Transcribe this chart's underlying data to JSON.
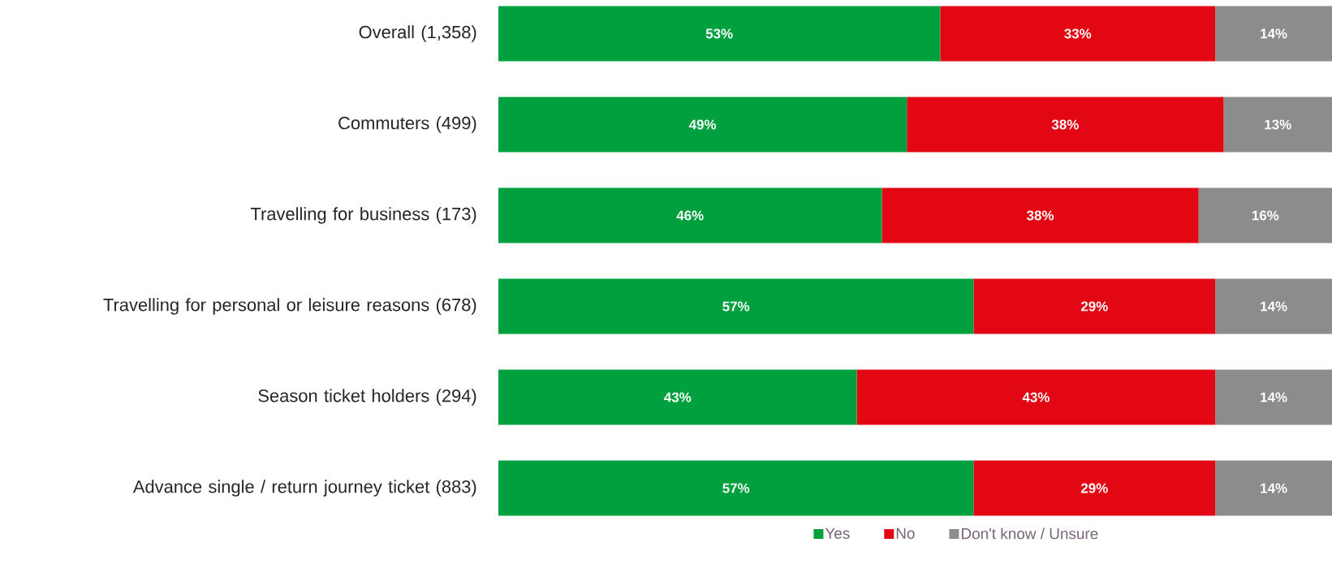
{
  "chart_data": {
    "type": "bar",
    "orientation": "horizontal",
    "stacked": true,
    "categories": [
      "Overall (1,358)",
      "Commuters (499)",
      "Travelling for business (173)",
      "Travelling for personal or leisure reasons (678)",
      "Season ticket holders (294)",
      "Advance single / return journey ticket (883)"
    ],
    "series": [
      {
        "name": "Yes",
        "color": "#00a03e",
        "values": [
          53,
          49,
          46,
          57,
          43,
          57
        ],
        "value_labels": [
          "53%",
          "49%",
          "46%",
          "57%",
          "43%",
          "57%"
        ]
      },
      {
        "name": "No",
        "color": "#e30613",
        "values": [
          33,
          38,
          38,
          29,
          43,
          29
        ],
        "value_labels": [
          "33%",
          "38%",
          "38%",
          "29%",
          "43%",
          "29%"
        ]
      },
      {
        "name": "Don't know / Unsure",
        "color": "#8c8c8c",
        "values": [
          14,
          13,
          16,
          14,
          14,
          14
        ],
        "value_labels": [
          "14%",
          "13%",
          "16%",
          "14%",
          "14%",
          "14%"
        ]
      }
    ],
    "xlim": [
      0,
      100
    ],
    "tick_labels": "y",
    "legend": "bottom"
  }
}
